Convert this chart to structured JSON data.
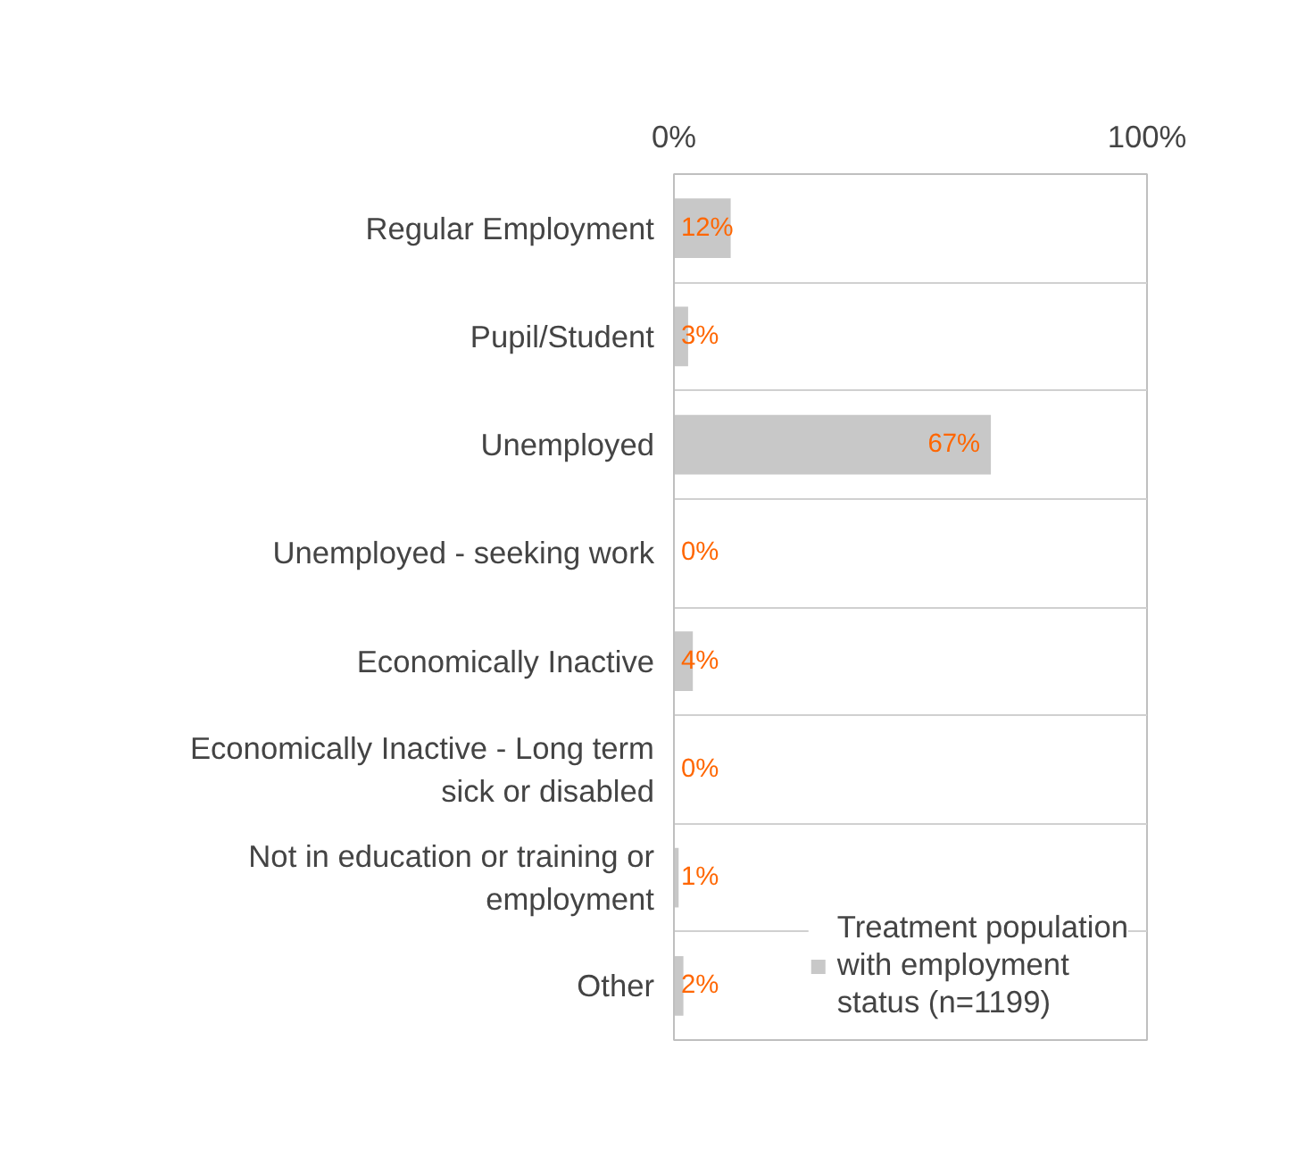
{
  "chart_data": {
    "type": "bar",
    "orientation": "horizontal",
    "categories": [
      "Regular Employment",
      "Pupil/Student",
      "Unemployed",
      "Unemployed - seeking work",
      "Economically Inactive",
      "Economically Inactive - Long term sick or disabled",
      "Not in education or training or employment",
      "Other"
    ],
    "series": [
      {
        "name": "Treatment population with employment status (n=1199)",
        "color": "#c8c8c8",
        "values": [
          12,
          3,
          67,
          0,
          4,
          0,
          1,
          2
        ],
        "value_labels": [
          "12%",
          "3%",
          "67%",
          "0%",
          "4%",
          "0%",
          "1%",
          "2%"
        ]
      }
    ],
    "xlim": [
      0,
      100
    ],
    "xticks": [
      {
        "value": 0,
        "label": "0%"
      },
      {
        "value": 100,
        "label": "100%"
      }
    ],
    "grid": "y",
    "legend": "bottom right"
  }
}
